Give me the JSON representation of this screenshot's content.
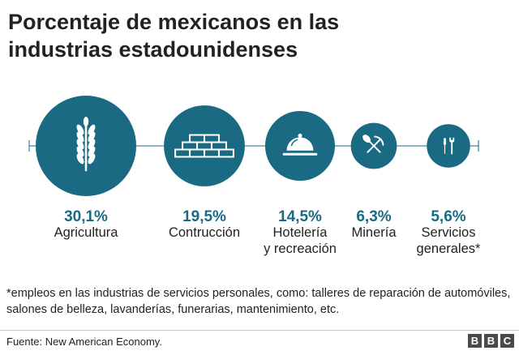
{
  "title_lines": [
    "Porcentaje de mexicanos en las",
    "industrias estadounidenses"
  ],
  "chart_data": {
    "type": "bubble",
    "unit": "%",
    "categories": [
      {
        "value": "30,1%",
        "number": 30.1,
        "label_lines": [
          "Agricultura"
        ],
        "icon": "wheat-icon"
      },
      {
        "value": "19,5%",
        "number": 19.5,
        "label_lines": [
          "Contrucción"
        ],
        "icon": "bricks-icon"
      },
      {
        "value": "14,5%",
        "number": 14.5,
        "label_lines": [
          "Hotelería",
          "y recreación"
        ],
        "icon": "cloche-icon"
      },
      {
        "value": "6,3%",
        "number": 6.3,
        "label_lines": [
          "Minería"
        ],
        "icon": "shovel-pickaxe-icon"
      },
      {
        "value": "5,6%",
        "number": 5.6,
        "label_lines": [
          "Servicios",
          "generales*"
        ],
        "icon": "screwdriver-wrench-icon"
      }
    ]
  },
  "footnote": "*empleos en las industrias de servicios personales, como: talleres de reparación de automóviles, salones de belleza, lavanderías, funerarias, mantenimiento, etc.",
  "source": "Fuente: New American Economy.",
  "logo": [
    "B",
    "B",
    "C"
  ],
  "colors": {
    "bubble": "#1a6a84",
    "value_text": "#1a6a84",
    "line": "#1a6a84"
  }
}
